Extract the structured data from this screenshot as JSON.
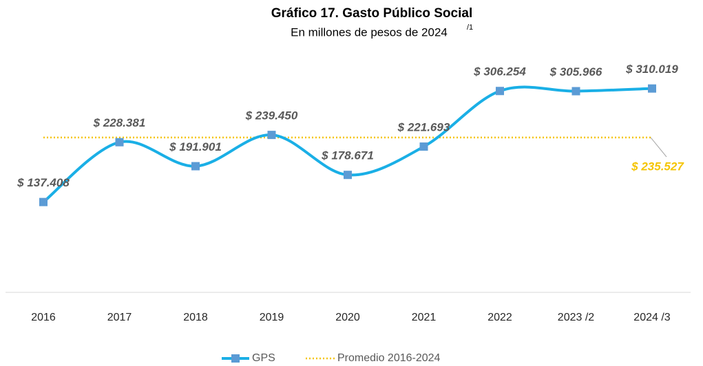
{
  "chart_data": {
    "type": "line",
    "title": "Gráfico 17. Gasto Público Social",
    "subtitle": "En millones de pesos de 2024",
    "subtitle_sup": "/1",
    "categories": [
      "2016",
      "2017",
      "2018",
      "2019",
      "2020",
      "2021",
      "2022",
      "2023 /2",
      "2024 /3"
    ],
    "series": [
      {
        "name": "GPS",
        "color": "#1aafe6",
        "marker_color": "#5b9bd5",
        "values": [
          137408,
          228381,
          191901,
          239450,
          178671,
          221693,
          306254,
          305966,
          310019
        ],
        "value_labels": [
          "$ 137.408",
          "$ 228.381",
          "$ 191.901",
          "$ 239.450",
          "$ 178.671",
          "$ 221.693",
          "$ 306.254",
          "$ 305.966",
          "$ 310.019"
        ]
      }
    ],
    "reference_line": {
      "name": "Promedio 2016-2024",
      "color": "#f5c400",
      "value": 235527,
      "value_label": "$ 235.527"
    },
    "ylim": [
      0,
      340000
    ],
    "legend": "bottom"
  }
}
